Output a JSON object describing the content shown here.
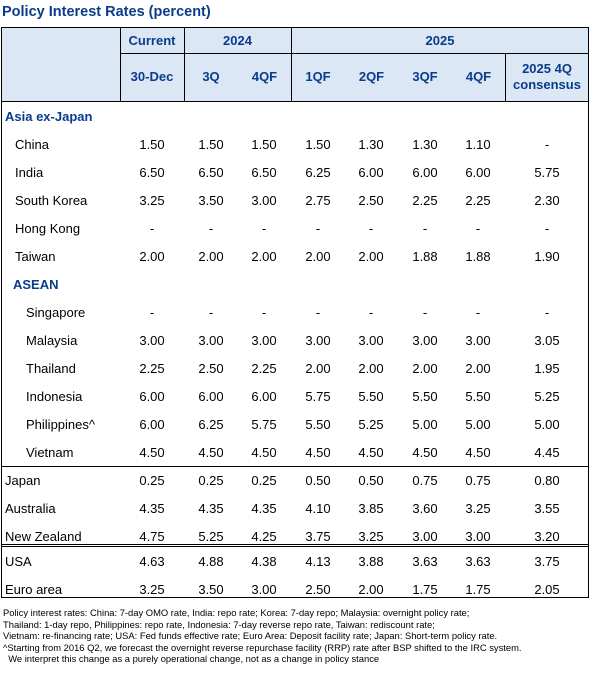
{
  "title": "Policy Interest Rates (percent)",
  "header": {
    "current": "Current",
    "y2024": "2024",
    "y2025": "2025",
    "date": "30-Dec",
    "cols": [
      "3Q",
      "4QF",
      "1QF",
      "2QF",
      "3QF",
      "4QF"
    ],
    "consensus": "2025 4Q\nconsensus"
  },
  "sections": {
    "asia": "Asia ex-Japan",
    "asean": "ASEAN"
  },
  "rows": [
    {
      "label": "China",
      "v": [
        "1.50",
        "1.50",
        "1.50",
        "1.50",
        "1.30",
        "1.30",
        "1.10",
        "-"
      ]
    },
    {
      "label": "India",
      "v": [
        "6.50",
        "6.50",
        "6.50",
        "6.25",
        "6.00",
        "6.00",
        "6.00",
        "5.75"
      ]
    },
    {
      "label": "South Korea",
      "v": [
        "3.25",
        "3.50",
        "3.00",
        "2.75",
        "2.50",
        "2.25",
        "2.25",
        "2.30"
      ]
    },
    {
      "label": "Hong Kong",
      "v": [
        "-",
        "-",
        "-",
        "-",
        "-",
        "-",
        "-",
        "-"
      ]
    },
    {
      "label": "Taiwan",
      "v": [
        "2.00",
        "2.00",
        "2.00",
        "2.00",
        "2.00",
        "1.88",
        "1.88",
        "1.90"
      ]
    },
    {
      "label": "Singapore",
      "v": [
        "-",
        "-",
        "-",
        "-",
        "-",
        "-",
        "-",
        "-"
      ]
    },
    {
      "label": "Malaysia",
      "v": [
        "3.00",
        "3.00",
        "3.00",
        "3.00",
        "3.00",
        "3.00",
        "3.00",
        "3.05"
      ]
    },
    {
      "label": "Thailand",
      "v": [
        "2.25",
        "2.50",
        "2.25",
        "2.00",
        "2.00",
        "2.00",
        "2.00",
        "1.95"
      ]
    },
    {
      "label": "Indonesia",
      "v": [
        "6.00",
        "6.00",
        "6.00",
        "5.75",
        "5.50",
        "5.50",
        "5.50",
        "5.25"
      ]
    },
    {
      "label": "Philippines^",
      "v": [
        "6.00",
        "6.25",
        "5.75",
        "5.50",
        "5.25",
        "5.00",
        "5.00",
        "5.00"
      ]
    },
    {
      "label": "Vietnam",
      "v": [
        "4.50",
        "4.50",
        "4.50",
        "4.50",
        "4.50",
        "4.50",
        "4.50",
        "4.45"
      ]
    },
    {
      "label": "Japan",
      "v": [
        "0.25",
        "0.25",
        "0.25",
        "0.50",
        "0.50",
        "0.75",
        "0.75",
        "0.80"
      ]
    },
    {
      "label": "Australia",
      "v": [
        "4.35",
        "4.35",
        "4.35",
        "4.10",
        "3.85",
        "3.60",
        "3.25",
        "3.55"
      ]
    },
    {
      "label": "New Zealand",
      "v": [
        "4.75",
        "5.25",
        "4.25",
        "3.75",
        "3.25",
        "3.00",
        "3.00",
        "3.20"
      ]
    },
    {
      "label": "USA",
      "v": [
        "4.63",
        "4.88",
        "4.38",
        "4.13",
        "3.88",
        "3.63",
        "3.63",
        "3.75"
      ]
    },
    {
      "label": "Euro area",
      "v": [
        "3.25",
        "3.50",
        "3.00",
        "2.50",
        "2.00",
        "1.75",
        "1.75",
        "2.05"
      ]
    }
  ],
  "notes": [
    "Policy interest rates: China: 7-day OMO rate, India: repo rate; Korea: 7-day repo; Malaysia: overnight policy rate;",
    "Thailand: 1-day repo, Philippines: repo rate, Indonesia: 7-day reverse repo rate, Taiwan: rediscount rate;",
    "Vietnam: re-financing rate; USA: Fed funds effective rate; Euro Area: Deposit facility rate; Japan: Short-term policy rate.",
    "^Starting from 2016 Q2, we forecast the overnight reverse repurchase facility (RRP) rate after BSP shifted to the IRC system.",
    "  We interpret this change as a purely operational change, not as a change in policy stance"
  ]
}
